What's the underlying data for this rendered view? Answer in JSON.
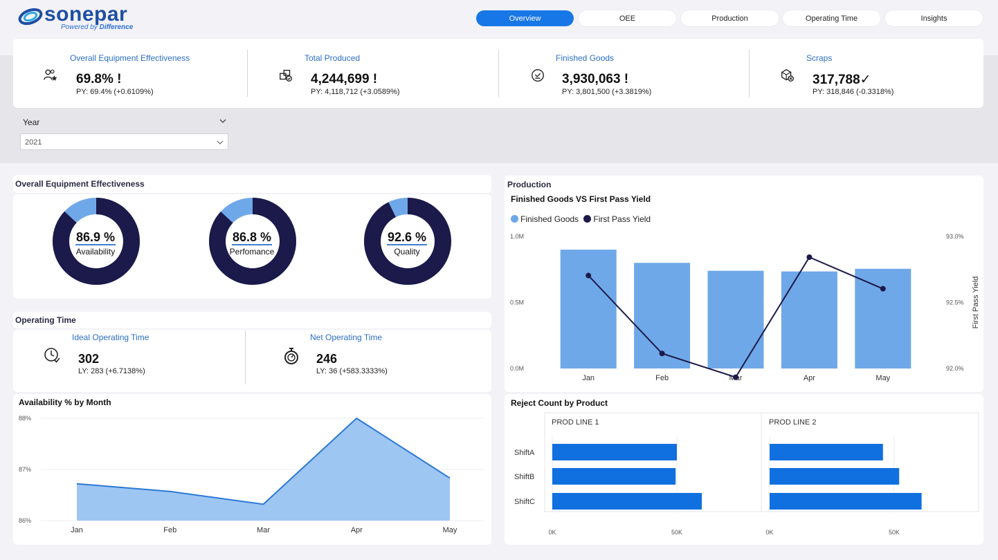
{
  "brand": {
    "name": "sonepar",
    "tagline_prefix": "Powered by",
    "tagline_emph": "Difference"
  },
  "nav": [
    {
      "label": "Overview",
      "active": true
    },
    {
      "label": "OEE",
      "active": false
    },
    {
      "label": "Production",
      "active": false
    },
    {
      "label": "Operating Time",
      "active": false
    },
    {
      "label": "Insights",
      "active": false
    }
  ],
  "kpis": [
    {
      "title": "Overall Equipment Effectiveness",
      "value": "69.8% !",
      "sub": "PY: 69.4% (+0.6109%)",
      "icon": "people-star-icon"
    },
    {
      "title": "Total Produced",
      "value": "4,244,699 !",
      "sub": "PY: 4,118,712 (+3.0589%)",
      "icon": "boxes-icon"
    },
    {
      "title": "Finished Goods",
      "value": "3,930,063 !",
      "sub": "PY: 3,801,500 (+3.3819%)",
      "icon": "check-circle-icon"
    },
    {
      "title": "Scraps",
      "value": "317,788✓",
      "sub": "PY: 318,846 (-0.3318%)",
      "icon": "box-x-icon"
    }
  ],
  "slicer": {
    "title": "Year",
    "value": "2021"
  },
  "oee": {
    "title": "Overall Equipment Effectiveness",
    "donuts": [
      {
        "value_label": "86.9 %",
        "name": "Availability",
        "value": 86.9
      },
      {
        "value_label": "86.8 %",
        "name": "Perfomance",
        "value": 86.8
      },
      {
        "value_label": "92.6 %",
        "name": "Quality",
        "value": 92.6
      }
    ],
    "colors": {
      "filled": "#1b1a4a",
      "remainder": "#6fa8e8"
    }
  },
  "operating_time": {
    "title": "Operating Time",
    "cards": [
      {
        "title": "Ideal Operating Time",
        "value": "302",
        "sub": "LY: 283 (+6.7138%)",
        "icon": "clock-check-icon"
      },
      {
        "title": "Net Operating Time",
        "value": "246",
        "sub": "LY: 36 (+583.3333%)",
        "icon": "stopwatch-icon"
      }
    ]
  },
  "production": {
    "title": "Production",
    "chart_title": "Finished Goods VS First Pass Yield",
    "legend": [
      "Finished Goods",
      "First Pass Yield"
    ]
  },
  "reject": {
    "title": "Reject Count by Product",
    "panels": [
      "PROD LINE 1",
      "PROD LINE 2"
    ]
  },
  "availability": {
    "title": "Availability % by Month"
  },
  "chart_data": [
    {
      "type": "bar+line",
      "title": "Finished Goods VS First Pass Yield",
      "categories": [
        "Jan",
        "Feb",
        "Mar",
        "Apr",
        "May"
      ],
      "series": [
        {
          "name": "Finished Goods",
          "type": "bar",
          "axis": "left",
          "values": [
            900000,
            800000,
            740000,
            735000,
            755000
          ],
          "color": "#6fa8e8"
        },
        {
          "name": "First Pass Yield",
          "type": "line",
          "axis": "right",
          "values": [
            92.84,
            92.25,
            92.07,
            93.0,
            92.74
          ],
          "color": "#1b1a4a"
        }
      ],
      "ylabel_right": "First Pass Yield",
      "ylim_left": [
        0,
        1000000
      ],
      "yticks_left": [
        "0.0M",
        "0.5M",
        "1.0M"
      ],
      "ylim_right": [
        92.0,
        93.0
      ],
      "yticks_right": [
        "92.0%",
        "92.5%",
        "93.0%"
      ]
    },
    {
      "type": "bar",
      "orientation": "horizontal",
      "title": "Reject Count by Product",
      "categories": [
        "ShiftA",
        "ShiftB",
        "ShiftC"
      ],
      "panels": [
        {
          "name": "PROD LINE 1",
          "values": [
            50000,
            49500,
            60000
          ]
        },
        {
          "name": "PROD LINE 2",
          "values": [
            45500,
            52000,
            61000
          ]
        }
      ],
      "xticks": [
        "0K",
        "50K"
      ],
      "xlim": [
        0,
        70000
      ],
      "color": "#1170e0"
    },
    {
      "type": "area",
      "title": "Availability % by Month",
      "categories": [
        "Jan",
        "Feb",
        "Mar",
        "Apr",
        "May"
      ],
      "values": [
        86.72,
        86.57,
        86.32,
        88.0,
        86.83
      ],
      "ylim": [
        86,
        88
      ],
      "yticks": [
        "86%",
        "87%",
        "88%"
      ],
      "fill": "#9ec6f2",
      "line": "#2a78d6"
    }
  ]
}
